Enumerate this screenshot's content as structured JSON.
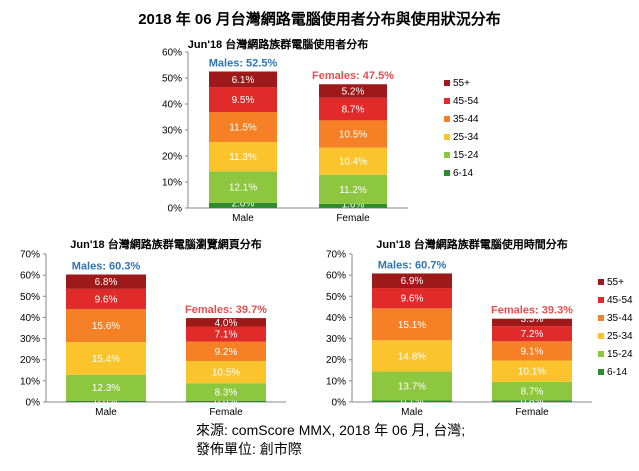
{
  "main_title": "2018 年 06 月台灣網路電腦使用者分布與使用狀況分布",
  "source": {
    "line1": "來源: comScore MMX, 2018 年 06 月, 台灣;",
    "line2": "發佈單位: 創市際"
  },
  "chart_data": [
    {
      "type": "bar",
      "stacked": true,
      "title": "Jun'18 台灣網路族群電腦使用者分布",
      "categories": [
        "Male",
        "Female"
      ],
      "ylim": [
        0,
        60
      ],
      "yticks": [
        "0%",
        "10%",
        "20%",
        "30%",
        "40%",
        "50%",
        "60%"
      ],
      "grid": false,
      "legend_position": "right",
      "totals": [
        "Males: 52.5%",
        "Females: 47.5%"
      ],
      "series": [
        {
          "name": "6-14",
          "color": "#2e8b2e",
          "values": [
            2.0,
            1.6
          ],
          "labels": [
            "2.0%",
            "1.6%"
          ]
        },
        {
          "name": "15-24",
          "color": "#8dc63f",
          "values": [
            12.1,
            11.2
          ],
          "labels": [
            "12.1%",
            "11.2%"
          ]
        },
        {
          "name": "25-34",
          "color": "#fcc42c",
          "values": [
            11.3,
            10.4
          ],
          "labels": [
            "11.3%",
            "10.4%"
          ]
        },
        {
          "name": "35-44",
          "color": "#f58025",
          "values": [
            11.5,
            10.5
          ],
          "labels": [
            "11.5%",
            "10.5%"
          ]
        },
        {
          "name": "45-54",
          "color": "#e12b2b",
          "values": [
            9.5,
            8.7
          ],
          "labels": [
            "9.5%",
            "8.7%"
          ]
        },
        {
          "name": "55+",
          "color": "#9e1a1a",
          "values": [
            6.1,
            5.2
          ],
          "labels": [
            "6.1%",
            "5.2%"
          ]
        }
      ]
    },
    {
      "type": "bar",
      "stacked": true,
      "title": "Jun'18 台灣網路族群電腦瀏覽網頁分布",
      "categories": [
        "Male",
        "Female"
      ],
      "ylim": [
        0,
        70
      ],
      "yticks": [
        "0%",
        "10%",
        "20%",
        "30%",
        "40%",
        "50%",
        "60%",
        "70%"
      ],
      "grid": false,
      "legend_position": "none",
      "totals": [
        "Males: 60.3%",
        "Females: 39.7%"
      ],
      "series": [
        {
          "name": "6-14",
          "color": "#2e8b2e",
          "values": [
            0.6,
            0.6
          ],
          "labels": [
            "0.6%",
            "0.6%"
          ]
        },
        {
          "name": "15-24",
          "color": "#8dc63f",
          "values": [
            12.3,
            8.3
          ],
          "labels": [
            "12.3%",
            "8.3%"
          ]
        },
        {
          "name": "25-34",
          "color": "#fcc42c",
          "values": [
            15.4,
            10.5
          ],
          "labels": [
            "15.4%",
            "10.5%"
          ]
        },
        {
          "name": "35-44",
          "color": "#f58025",
          "values": [
            15.6,
            9.2
          ],
          "labels": [
            "15.6%",
            "9.2%"
          ]
        },
        {
          "name": "45-54",
          "color": "#e12b2b",
          "values": [
            9.6,
            7.1
          ],
          "labels": [
            "9.6%",
            "7.1%"
          ]
        },
        {
          "name": "55+",
          "color": "#9e1a1a",
          "values": [
            6.8,
            4.0
          ],
          "labels": [
            "6.8%",
            "4.0%"
          ]
        }
      ]
    },
    {
      "type": "bar",
      "stacked": true,
      "title": "Jun'18 台灣網路族群電腦使用時間分布",
      "categories": [
        "Male",
        "Female"
      ],
      "ylim": [
        0,
        70
      ],
      "yticks": [
        "0%",
        "10%",
        "20%",
        "30%",
        "40%",
        "50%",
        "60%",
        "70%"
      ],
      "grid": false,
      "legend_position": "right",
      "totals": [
        "Males: 60.7%",
        "Females: 39.3%"
      ],
      "series": [
        {
          "name": "6-14",
          "color": "#2e8b2e",
          "values": [
            0.7,
            0.8
          ],
          "labels": [
            "0.7%",
            "0.8%"
          ]
        },
        {
          "name": "15-24",
          "color": "#8dc63f",
          "values": [
            13.7,
            8.7
          ],
          "labels": [
            "13.7%",
            "8.7%"
          ]
        },
        {
          "name": "25-34",
          "color": "#fcc42c",
          "values": [
            14.8,
            10.1
          ],
          "labels": [
            "14.8%",
            "10.1%"
          ]
        },
        {
          "name": "35-44",
          "color": "#f58025",
          "values": [
            15.1,
            9.1
          ],
          "labels": [
            "15.1%",
            "9.1%"
          ]
        },
        {
          "name": "45-54",
          "color": "#e12b2b",
          "values": [
            9.6,
            7.2
          ],
          "labels": [
            "9.6%",
            "7.2%"
          ]
        },
        {
          "name": "55+",
          "color": "#9e1a1a",
          "values": [
            6.9,
            3.5
          ],
          "labels": [
            "6.9%",
            "3.5%"
          ]
        }
      ]
    }
  ],
  "colors": {
    "male_total_text": "#2e75b6",
    "female_total_text": "#e05050"
  }
}
